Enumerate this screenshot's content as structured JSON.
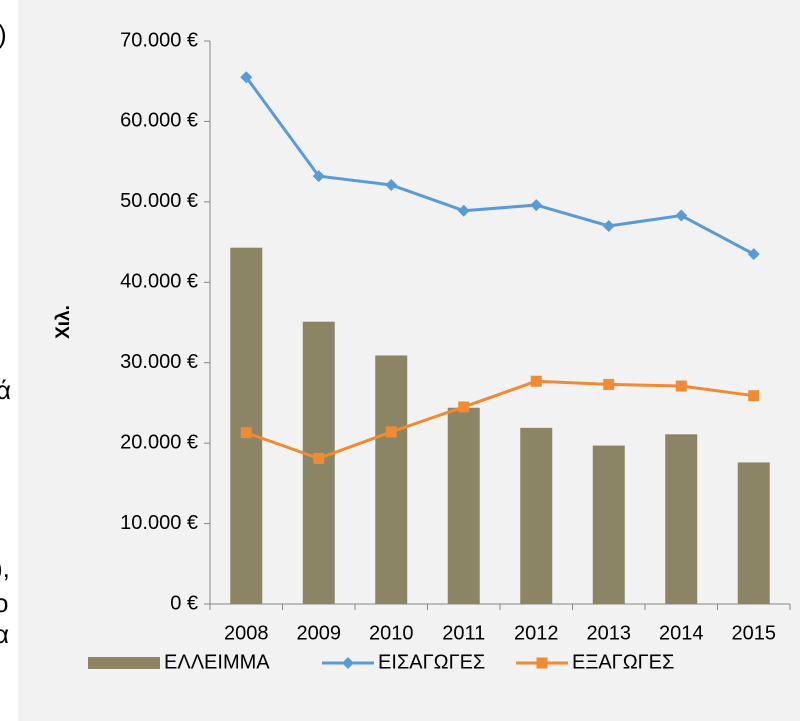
{
  "side_text": [
    ")",
    "ά",
    "),",
    "ο",
    "α"
  ],
  "chart_data": {
    "type": "combo",
    "y_label": "Χιλ.",
    "categories": [
      "2008",
      "2009",
      "2010",
      "2011",
      "2012",
      "2013",
      "2014",
      "2015"
    ],
    "series": [
      {
        "name": "ΕΛΛΕΙΜΜΑ",
        "type": "bar",
        "color": "#8b8566",
        "values": [
          44300,
          35100,
          30900,
          24400,
          21900,
          19700,
          21100,
          17600
        ]
      },
      {
        "name": "ΕΙΣΑΓΩΓΕΣ",
        "type": "line",
        "marker": "diamond",
        "color": "#5b9bd5",
        "values": [
          65500,
          53200,
          52100,
          48900,
          49600,
          47000,
          48300,
          43500
        ]
      },
      {
        "name": "ΕΞΑΓΩΓΕΣ",
        "type": "line",
        "marker": "square",
        "color": "#f08a33",
        "values": [
          21300,
          18100,
          21400,
          24500,
          27700,
          27300,
          27100,
          25900
        ]
      }
    ],
    "ylim": [
      0,
      70000
    ],
    "yticks": [
      {
        "value": 0,
        "label": "0 €"
      },
      {
        "value": 10000,
        "label": "10.000 €"
      },
      {
        "value": 20000,
        "label": "20.000 €"
      },
      {
        "value": 30000,
        "label": "30.000 €"
      },
      {
        "value": 40000,
        "label": "40.000 €"
      },
      {
        "value": 50000,
        "label": "50.000 €"
      },
      {
        "value": 60000,
        "label": "60.000 €"
      },
      {
        "value": 70000,
        "label": "70.000 €"
      }
    ],
    "grid": false,
    "legend": "bottom"
  }
}
